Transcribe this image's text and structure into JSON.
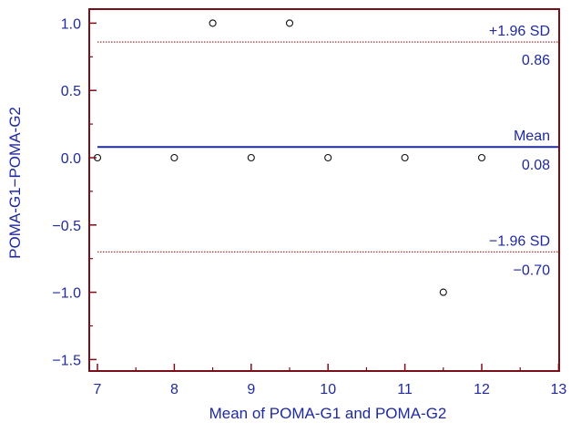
{
  "chart_data": {
    "type": "scatter",
    "title": "",
    "xlabel": "Mean of POMA-G1 and POMA-G2",
    "ylabel": "POMA-G1−POMA-G2",
    "xlim": [
      7,
      13
    ],
    "ylim": [
      -1.6,
      1.1
    ],
    "xticks": [
      7,
      8,
      9,
      10,
      11,
      12,
      13
    ],
    "xtick_labels": [
      "7",
      "8",
      "9",
      "10",
      "11",
      "12",
      "13"
    ],
    "yticks": [
      1.0,
      0.5,
      0.0,
      -0.5,
      -1.0,
      -1.5
    ],
    "ytick_labels": [
      "1.0",
      "0.5",
      "0.0",
      "−0.5",
      "−1.0",
      "−1.5"
    ],
    "points": [
      {
        "x": 7,
        "y": 0
      },
      {
        "x": 8,
        "y": 0
      },
      {
        "x": 8.5,
        "y": 1
      },
      {
        "x": 9,
        "y": 0
      },
      {
        "x": 9.5,
        "y": 1
      },
      {
        "x": 10,
        "y": 0
      },
      {
        "x": 11,
        "y": 0
      },
      {
        "x": 11.5,
        "y": -1
      },
      {
        "x": 12,
        "y": 0
      }
    ],
    "reference_lines": [
      {
        "name": "upper-limit",
        "label": "+1.96 SD",
        "value_label": "0.86",
        "y": 0.86,
        "style": "dotted",
        "color": "#9b1b1b"
      },
      {
        "name": "mean",
        "label": "Mean",
        "value_label": "0.08",
        "y": 0.08,
        "style": "solid",
        "color": "#1f2aa0"
      },
      {
        "name": "lower-limit",
        "label": "−1.96 SD",
        "value_label": "−0.70",
        "y": -0.7,
        "style": "dotted",
        "color": "#9b1b1b"
      }
    ],
    "grid": false,
    "colors": {
      "frame": "#7a0f1a",
      "text": "#1f2aa0",
      "points": "#111111"
    }
  }
}
